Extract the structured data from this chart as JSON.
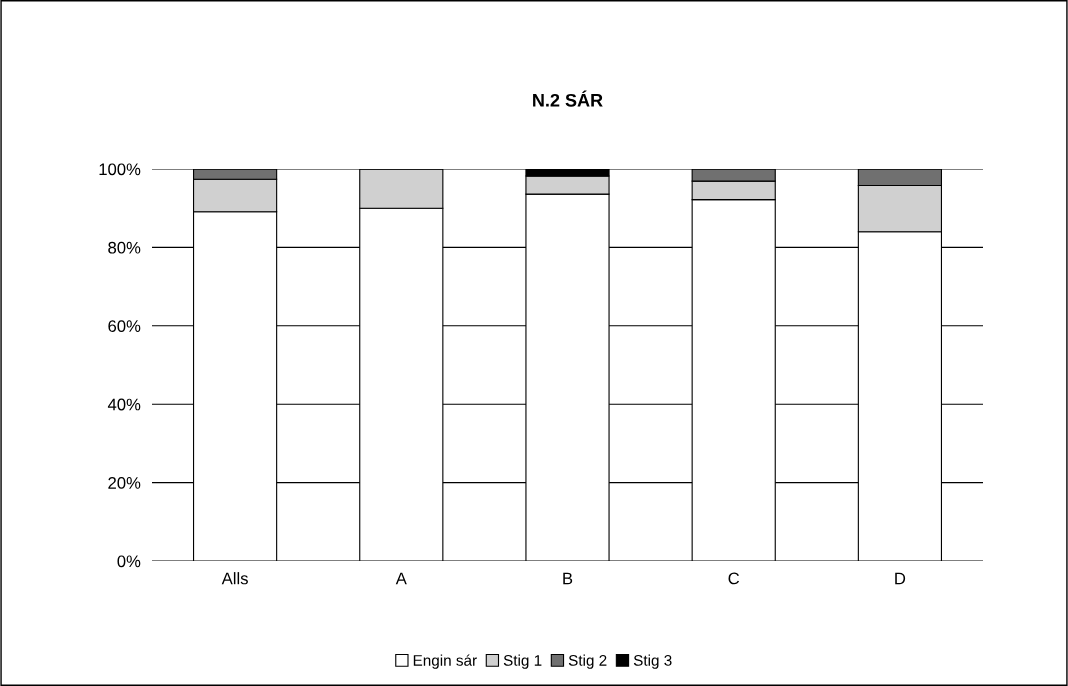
{
  "chart_data": {
    "type": "bar",
    "title": "N.2 SÁR",
    "stacked": true,
    "categories": [
      "Alls",
      "A",
      "B",
      "C",
      "D"
    ],
    "series": [
      {
        "name": "Engin sár",
        "color": "#ffffff",
        "values": [
          89.1,
          90,
          93.6,
          92.2,
          84
        ]
      },
      {
        "name": "Stig 1",
        "color": "#d0d0d0",
        "values": [
          8.3,
          10,
          4.6,
          4.7,
          11.8
        ]
      },
      {
        "name": "Stig 2",
        "color": "#707070",
        "values": [
          2.6,
          0,
          0,
          3.1,
          4.2
        ]
      },
      {
        "name": "Stig 3",
        "color": "#000000",
        "values": [
          0,
          0,
          1.7,
          0,
          0
        ]
      }
    ],
    "ylim": [
      0,
      100
    ],
    "yticks": [
      {
        "value": 0,
        "label": "0%"
      },
      {
        "value": 20,
        "label": "20%"
      },
      {
        "value": 40,
        "label": "40%"
      },
      {
        "value": 60,
        "label": "60%"
      },
      {
        "value": 80,
        "label": "80%"
      },
      {
        "value": 100,
        "label": "100%"
      }
    ],
    "grid": "y",
    "legend": "bottom"
  }
}
